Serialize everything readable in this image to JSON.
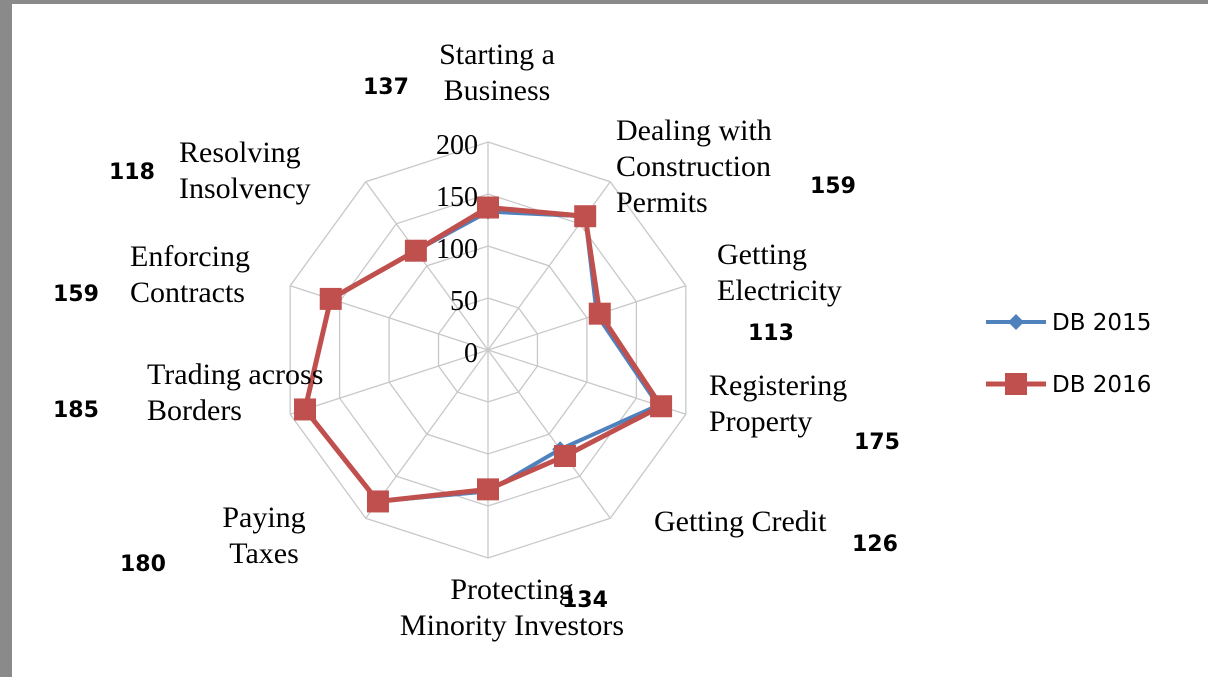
{
  "chart_data": {
    "type": "radar",
    "categories": [
      "Starting a Business",
      "Dealing with Construction Permits",
      "Getting Electricity",
      "Registering Property",
      "Getting Credit",
      "Protecting Minority Investors",
      "Paying Taxes",
      "Trading across Borders",
      "Enforcing Contracts",
      "Resolving Insolvency"
    ],
    "category_lines": [
      [
        "Starting a",
        "Business"
      ],
      [
        "Dealing with",
        "Construction",
        "Permits"
      ],
      [
        "Getting",
        "Electricity"
      ],
      [
        "Registering",
        "Property"
      ],
      [
        "Getting Credit"
      ],
      [
        "Protecting",
        "Minority Investors"
      ],
      [
        "Paying",
        "Taxes"
      ],
      [
        "Trading across",
        "Borders"
      ],
      [
        "Enforcing",
        "Contracts"
      ],
      [
        "Resolving",
        "Insolvency"
      ]
    ],
    "value_labels": [
      "137",
      "159",
      "113",
      "175",
      "126",
      "134",
      "180",
      "185",
      "159",
      "118"
    ],
    "series": [
      {
        "name": "DB 2015",
        "color": "#4f81bd",
        "marker": "diamond",
        "values": [
          133,
          159,
          110,
          172,
          118,
          136,
          180,
          185,
          159,
          118
        ]
      },
      {
        "name": "DB 2016",
        "color": "#c0504d",
        "marker": "square",
        "values": [
          137,
          159,
          113,
          175,
          126,
          134,
          180,
          185,
          159,
          118
        ]
      }
    ],
    "rlim": [
      0,
      200
    ],
    "ticks": [
      0,
      50,
      100,
      150,
      200
    ],
    "grid": true,
    "legend": "right"
  }
}
